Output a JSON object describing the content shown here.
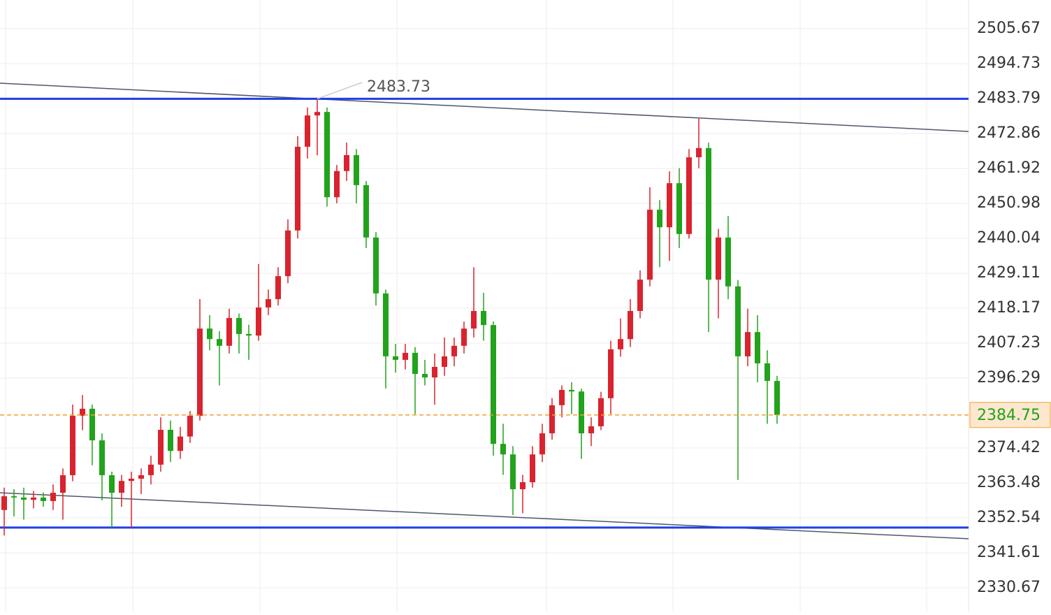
{
  "chart_data": {
    "type": "candlestick",
    "open": [
      2355.0,
      2359.3,
      2358.9,
      2358.2,
      2358.9,
      2357.8,
      2360.4,
      2365.9,
      2384.5,
      2386.7,
      2376.8,
      2365.9,
      2360.4,
      2364.1,
      2364.8,
      2365.9,
      2369.2,
      2380.1,
      2373.5,
      2378.0,
      2384.5,
      2411.8,
      2408.5,
      2406.4,
      2415.1,
      2410.1,
      2409.6,
      2418.4,
      2421.0,
      2428.2,
      2442.5,
      2468.7,
      2478.5,
      2479.6,
      2452.9,
      2461.1,
      2466.1,
      2456.7,
      2440.3,
      2422.8,
      2403.1,
      2402.0,
      2404.2,
      2397.6,
      2396.5,
      2399.8,
      2403.1,
      2406.4,
      2411.8,
      2417.3,
      2412.9,
      2375.7,
      2372.4,
      2361.5,
      2363.7,
      2372.4,
      2379.0,
      2387.8,
      2392.6,
      2392.1,
      2379.0,
      2381.2,
      2390.0,
      2405.3,
      2408.5,
      2417.3,
      2427.1,
      2449.0,
      2443.5,
      2457.3,
      2441.4,
      2465.4,
      2468.3,
      2427.1,
      2440.3,
      2425.0,
      2403.1,
      2410.7,
      2400.9,
      2395.4
    ],
    "high": [
      2362.0,
      2361.5,
      2362.0,
      2361.0,
      2360.5,
      2363.0,
      2368.0,
      2388.0,
      2391.0,
      2388.0,
      2379.0,
      2367.0,
      2366.0,
      2367.0,
      2368.0,
      2372.0,
      2384.0,
      2383.0,
      2381.0,
      2386.0,
      2421.0,
      2416.0,
      2411.0,
      2418.0,
      2416.5,
      2413.0,
      2432.0,
      2424.0,
      2431.0,
      2446.0,
      2472.0,
      2481.0,
      2483.73,
      2481.0,
      2463.0,
      2470.0,
      2468.0,
      2458.0,
      2442.0,
      2424.0,
      2407.0,
      2407.0,
      2406.0,
      2402.0,
      2404.0,
      2409.0,
      2409.0,
      2414.0,
      2431.0,
      2423.0,
      2414.0,
      2382.0,
      2375.0,
      2366.0,
      2375.0,
      2382.0,
      2390.0,
      2394.0,
      2395.0,
      2393.0,
      2384.0,
      2392.0,
      2408.0,
      2415.0,
      2421.0,
      2430.0,
      2456.0,
      2452.0,
      2461.0,
      2462.0,
      2468.0,
      2477.5,
      2470.0,
      2443.0,
      2447.0,
      2427.0,
      2418.0,
      2416.0,
      2405.0,
      2397.0
    ],
    "low": [
      2347.0,
      2353.0,
      2352.0,
      2355.5,
      2356.0,
      2355.0,
      2352.0,
      2364.0,
      2380.0,
      2369.0,
      2358.0,
      2349.5,
      2356.0,
      2349.5,
      2360.0,
      2363.0,
      2367.0,
      2370.0,
      2371.0,
      2376.0,
      2383.0,
      2405.0,
      2394.0,
      2404.0,
      2404.0,
      2402.0,
      2408.0,
      2416.0,
      2419.0,
      2426.0,
      2440.0,
      2465.0,
      2466.0,
      2450.0,
      2451.0,
      2458.0,
      2451.0,
      2437.0,
      2419.0,
      2393.0,
      2398.0,
      2399.0,
      2385.0,
      2394.0,
      2388.0,
      2397.0,
      2400.0,
      2404.0,
      2409.0,
      2408.0,
      2372.0,
      2366.0,
      2353.4,
      2354.0,
      2362.0,
      2370.0,
      2377.0,
      2384.0,
      2385.0,
      2371.0,
      2375.0,
      2380.0,
      2385.0,
      2403.0,
      2406.0,
      2415.0,
      2425.0,
      2431.0,
      2433.0,
      2437.0,
      2440.0,
      2462.0,
      2410.7,
      2415.0,
      2421.0,
      2364.4,
      2400.0,
      2395.0,
      2382.0,
      2382.0
    ],
    "close": [
      2359.3,
      2358.9,
      2358.2,
      2358.9,
      2357.8,
      2360.4,
      2365.9,
      2384.5,
      2386.7,
      2376.8,
      2365.9,
      2360.4,
      2364.1,
      2364.8,
      2365.9,
      2369.2,
      2380.1,
      2373.5,
      2378.0,
      2384.5,
      2411.8,
      2408.5,
      2406.4,
      2415.1,
      2410.1,
      2409.6,
      2418.4,
      2421.0,
      2428.2,
      2442.5,
      2468.7,
      2478.5,
      2479.6,
      2452.9,
      2461.1,
      2466.1,
      2456.7,
      2440.3,
      2422.8,
      2403.1,
      2402.0,
      2404.2,
      2397.6,
      2396.5,
      2399.8,
      2403.1,
      2406.4,
      2411.8,
      2417.3,
      2412.9,
      2375.7,
      2372.4,
      2361.5,
      2363.7,
      2372.4,
      2379.0,
      2387.8,
      2392.6,
      2392.1,
      2379.0,
      2381.2,
      2390.0,
      2405.3,
      2408.5,
      2417.3,
      2427.1,
      2449.0,
      2443.5,
      2457.3,
      2441.4,
      2465.4,
      2468.3,
      2427.1,
      2440.3,
      2425.0,
      2403.1,
      2410.7,
      2400.9,
      2395.4,
      2384.75
    ],
    "up_color": "#d9232e",
    "down_color": "#21a31b",
    "ylim": [
      2323.01,
      2514.64
    ],
    "yticks": [
      2505.67,
      2494.73,
      2483.79,
      2472.86,
      2461.92,
      2450.98,
      2440.04,
      2429.11,
      2418.17,
      2407.23,
      2396.29,
      2374.42,
      2363.48,
      2352.54,
      2341.61,
      2330.67
    ],
    "grid": true,
    "levels": {
      "color": "#1f3fe6",
      "values": [
        2483.7,
        2349.5
      ]
    },
    "trendlines": {
      "color": "#4f5868",
      "lines": [
        [
          2488.6,
          2473.5
        ],
        [
          2360.4,
          2346.0
        ]
      ]
    },
    "last_price_color": "#f0a030"
  }
}
